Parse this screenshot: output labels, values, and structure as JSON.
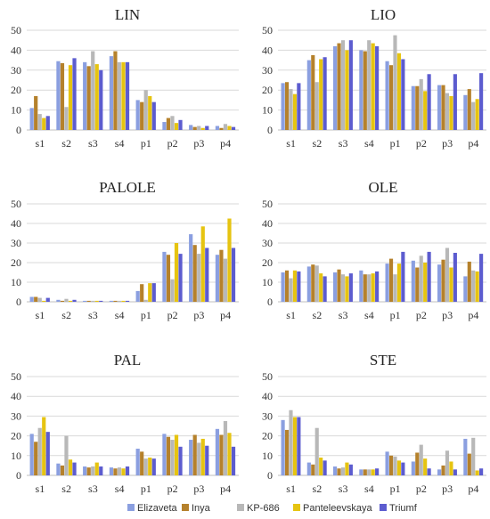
{
  "colors": {
    "Elizaveta": "#8b9fe0",
    "Inya": "#b5812c",
    "KP-686": "#b8b8b8",
    "Panteleevskaya": "#e6c411",
    "Triumf": "#5c5ccf"
  },
  "chart_data": [
    {
      "type": "bar",
      "title": "LIN",
      "categories": [
        "s1",
        "s2",
        "s3",
        "s4",
        "p1",
        "p2",
        "p3",
        "p4"
      ],
      "ylim": [
        0,
        50
      ],
      "yticks": [
        0,
        10,
        20,
        30,
        40,
        50
      ],
      "series": [
        {
          "name": "Elizaveta",
          "values": [
            11,
            34.5,
            34,
            37,
            15,
            4,
            2.5,
            2
          ]
        },
        {
          "name": "Inya",
          "values": [
            17,
            33.5,
            32,
            39.5,
            14,
            6,
            1.5,
            1
          ]
        },
        {
          "name": "KP-686",
          "values": [
            8,
            11.5,
            39.5,
            34,
            20,
            7,
            2,
            3
          ]
        },
        {
          "name": "Panteleevskaya",
          "values": [
            6,
            32.5,
            33,
            34,
            17,
            3.5,
            1,
            2
          ]
        },
        {
          "name": "Triumf",
          "values": [
            7,
            36,
            30,
            34,
            14,
            5,
            2,
            1.5
          ]
        }
      ]
    },
    {
      "type": "bar",
      "title": "LIO",
      "categories": [
        "s1",
        "s2",
        "s3",
        "s4",
        "p1",
        "p2",
        "p3",
        "p4"
      ],
      "ylim": [
        0,
        50
      ],
      "yticks": [
        0,
        10,
        20,
        30,
        40,
        50
      ],
      "series": [
        {
          "name": "Elizaveta",
          "values": [
            23.5,
            35,
            42,
            40,
            34.5,
            22,
            22.5,
            17.5
          ]
        },
        {
          "name": "Inya",
          "values": [
            24,
            37.5,
            43.5,
            39.5,
            32.5,
            22,
            22.5,
            20.5
          ]
        },
        {
          "name": "KP-686",
          "values": [
            20.5,
            24,
            45,
            45,
            47.5,
            25.5,
            18.5,
            14
          ]
        },
        {
          "name": "Panteleevskaya",
          "values": [
            18,
            35.5,
            40,
            43.5,
            38.5,
            19.5,
            17,
            15.5
          ]
        },
        {
          "name": "Triumf",
          "values": [
            23.5,
            36.5,
            45,
            42,
            35.5,
            28,
            28,
            28.5
          ]
        }
      ]
    },
    {
      "type": "bar",
      "title": "PALOLE",
      "categories": [
        "s1",
        "s2",
        "s3",
        "s4",
        "p1",
        "p2",
        "p3",
        "p4"
      ],
      "ylim": [
        0,
        50
      ],
      "yticks": [
        0,
        10,
        20,
        30,
        40,
        50
      ],
      "series": [
        {
          "name": "Elizaveta",
          "values": [
            2.5,
            1,
            0.5,
            0.5,
            5.5,
            25.5,
            34.5,
            24
          ]
        },
        {
          "name": "Inya",
          "values": [
            2.5,
            0.5,
            0.5,
            0.5,
            9,
            24,
            29,
            26.5
          ]
        },
        {
          "name": "KP-686",
          "values": [
            2,
            1.5,
            0.5,
            0.5,
            1,
            11.5,
            24.5,
            22
          ]
        },
        {
          "name": "Panteleevskaya",
          "values": [
            0.5,
            0.5,
            0.5,
            0.5,
            9.5,
            30,
            38.5,
            42.5
          ]
        },
        {
          "name": "Triumf",
          "values": [
            2,
            1,
            0.5,
            0.5,
            9.5,
            24.5,
            27.5,
            27.5
          ]
        }
      ]
    },
    {
      "type": "bar",
      "title": "OLE",
      "categories": [
        "s1",
        "s2",
        "s3",
        "s4",
        "p1",
        "p2",
        "p3",
        "p4"
      ],
      "ylim": [
        0,
        50
      ],
      "yticks": [
        0,
        10,
        20,
        30,
        40,
        50
      ],
      "series": [
        {
          "name": "Elizaveta",
          "values": [
            15,
            18,
            15,
            16,
            19.5,
            21,
            19,
            13
          ]
        },
        {
          "name": "Inya",
          "values": [
            16,
            19,
            16.5,
            14,
            22,
            17.5,
            21.5,
            20.5
          ]
        },
        {
          "name": "KP-686",
          "values": [
            12,
            18.5,
            14,
            14,
            14,
            23.5,
            27.5,
            16
          ]
        },
        {
          "name": "Panteleevskaya",
          "values": [
            16,
            14.5,
            13,
            14.5,
            19.5,
            20,
            17.5,
            15.5
          ]
        },
        {
          "name": "Triumf",
          "values": [
            15.5,
            13,
            14.5,
            15.5,
            25.5,
            25.5,
            25,
            24.5
          ]
        }
      ]
    },
    {
      "type": "bar",
      "title": "PAL",
      "categories": [
        "s1",
        "s2",
        "s3",
        "s4",
        "p1",
        "p2",
        "p3",
        "p4"
      ],
      "ylim": [
        0,
        50
      ],
      "yticks": [
        0,
        10,
        20,
        30,
        40,
        50
      ],
      "series": [
        {
          "name": "Elizaveta",
          "values": [
            21,
            6,
            4.5,
            4,
            13.5,
            21,
            18,
            23.5
          ]
        },
        {
          "name": "Inya",
          "values": [
            17,
            5,
            4,
            3.5,
            12,
            19.5,
            20.5,
            20.5
          ]
        },
        {
          "name": "KP-686",
          "values": [
            24,
            20,
            4.5,
            4,
            8.5,
            18,
            16.5,
            27.5
          ]
        },
        {
          "name": "Panteleevskaya",
          "values": [
            29.5,
            8,
            6.5,
            3.5,
            9,
            20.5,
            18.5,
            21.5
          ]
        },
        {
          "name": "Triumf",
          "values": [
            22,
            6.5,
            4.5,
            4.5,
            8.5,
            14.5,
            15,
            14.5
          ]
        }
      ]
    },
    {
      "type": "bar",
      "title": "STE",
      "categories": [
        "s1",
        "s2",
        "s3",
        "s4",
        "p1",
        "p2",
        "p3",
        "p4"
      ],
      "ylim": [
        0,
        50
      ],
      "yticks": [
        0,
        10,
        20,
        30,
        40,
        50
      ],
      "series": [
        {
          "name": "Elizaveta",
          "values": [
            28,
            6.5,
            4.5,
            3,
            12,
            7,
            3,
            18.5
          ]
        },
        {
          "name": "Inya",
          "values": [
            23,
            5.5,
            3.5,
            3,
            10,
            11.5,
            5,
            11
          ]
        },
        {
          "name": "KP-686",
          "values": [
            33,
            24,
            4,
            3,
            9.5,
            15.5,
            12.5,
            19
          ]
        },
        {
          "name": "Panteleevskaya",
          "values": [
            29.5,
            9,
            6.5,
            3,
            7.5,
            8.5,
            7,
            2.5
          ]
        },
        {
          "name": "Triumf",
          "values": [
            29.5,
            7.5,
            5.5,
            3.5,
            6.5,
            3.5,
            3,
            3.5
          ]
        }
      ]
    }
  ],
  "legend": [
    "Elizaveta",
    "Inya",
    "KP-686",
    "Panteleevskaya",
    "Triumf"
  ]
}
